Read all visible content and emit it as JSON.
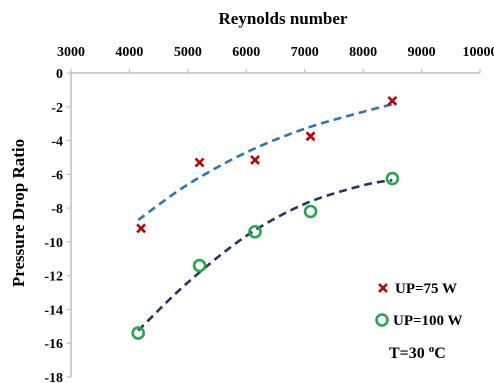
{
  "chart_data": {
    "type": "scatter",
    "title": "",
    "xlabel": "Reynolds number",
    "ylabel": "Pressure Drop Ratio",
    "xlim": [
      3000,
      10000
    ],
    "ylim": [
      -18,
      0
    ],
    "x_ticks": [
      "3000",
      "4000",
      "5000",
      "6000",
      "7000",
      "8000",
      "9000",
      "10000"
    ],
    "y_ticks": [
      "0",
      "-2",
      "-4",
      "-6",
      "-8",
      "-10",
      "-12",
      "-14",
      "-16",
      "-18"
    ],
    "x_axis_position": "top",
    "grid": false,
    "legend_position": "bottom-right",
    "series": [
      {
        "name": "UP=75 W",
        "marker": "x",
        "color": "#c00000",
        "trend_color": "#2e75b6",
        "x": [
          4200,
          5200,
          6150,
          7100,
          8500
        ],
        "y": [
          -9.2,
          -5.3,
          -5.15,
          -3.75,
          -1.65
        ]
      },
      {
        "name": "UP=100 W",
        "marker": "circle",
        "color": "#22a84a",
        "trend_color": "#1f3864",
        "x": [
          4150,
          5200,
          6150,
          7100,
          8500
        ],
        "y": [
          -15.4,
          -11.4,
          -9.4,
          -8.2,
          -6.25
        ]
      }
    ],
    "trendlines": [
      {
        "series": "UP=75 W",
        "x": [
          4150,
          5000,
          6000,
          7000,
          8000,
          8500
        ],
        "y": [
          -8.7,
          -6.6,
          -4.7,
          -3.3,
          -2.3,
          -1.85
        ]
      },
      {
        "series": "UP=100 W",
        "x": [
          4150,
          5000,
          6000,
          7000,
          8000,
          8500
        ],
        "y": [
          -15.25,
          -12.4,
          -9.65,
          -7.75,
          -6.65,
          -6.35
        ]
      }
    ],
    "annotation": {
      "text": "T=30 ",
      "superscript": "o",
      "suffix": "C"
    }
  }
}
